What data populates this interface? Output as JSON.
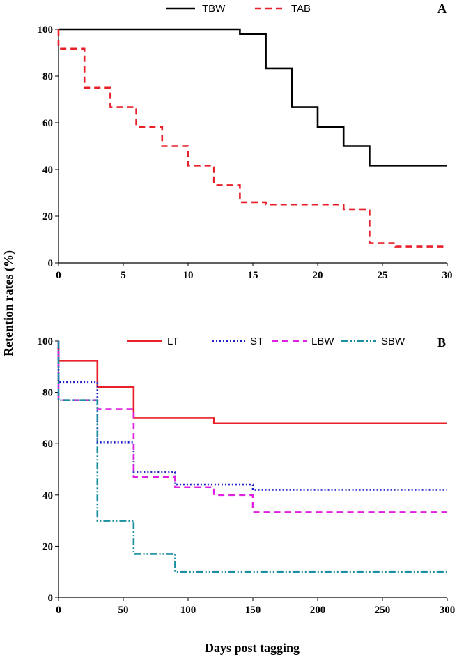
{
  "ylabel": "Retention rates (%)",
  "xlabel": "Days post tagging",
  "chart_data": [
    {
      "type": "line",
      "step": true,
      "panel": "A",
      "xlim": [
        0,
        30
      ],
      "ylim": [
        0,
        100
      ],
      "xticks": [
        0,
        5,
        10,
        15,
        20,
        25,
        30
      ],
      "yticks": [
        0,
        20,
        40,
        60,
        80,
        100
      ],
      "legend_placement": "top",
      "series": [
        {
          "name": "TBW",
          "color": "#000000",
          "style": "solid",
          "x": [
            0,
            14,
            16,
            18,
            20,
            22,
            24,
            30
          ],
          "y": [
            100,
            98,
            83.3,
            66.7,
            58.3,
            50,
            41.7,
            41.7
          ]
        },
        {
          "name": "TAB",
          "color": "#e8202a",
          "style": "dashed",
          "x": [
            0,
            0,
            2,
            4,
            6,
            8,
            10,
            12,
            14,
            16,
            22,
            24,
            26,
            30
          ],
          "y": [
            100,
            91.7,
            75,
            66.7,
            58.3,
            50,
            41.7,
            33.3,
            26,
            25,
            23,
            8.5,
            7,
            7
          ]
        }
      ]
    },
    {
      "type": "line",
      "step": true,
      "panel": "B",
      "xlim": [
        0,
        300
      ],
      "ylim": [
        0,
        100
      ],
      "xticks": [
        0,
        50,
        100,
        150,
        200,
        250,
        300
      ],
      "yticks": [
        0,
        20,
        40,
        60,
        80,
        100
      ],
      "legend_placement": "top",
      "series": [
        {
          "name": "LT",
          "color": "#e8202a",
          "style": "solid",
          "x": [
            0,
            0,
            30,
            58,
            120,
            300
          ],
          "y": [
            100,
            92.3,
            82,
            70,
            68,
            68
          ]
        },
        {
          "name": "ST",
          "color": "#1f1fc8",
          "style": "dotted",
          "x": [
            0,
            0,
            30,
            58,
            90,
            150,
            300
          ],
          "y": [
            100,
            84,
            60.5,
            49,
            44,
            42,
            42
          ]
        },
        {
          "name": "LBW",
          "color": "#e020e0",
          "style": "dashed",
          "x": [
            0,
            0,
            30,
            58,
            90,
            120,
            150,
            300
          ],
          "y": [
            100,
            77,
            73.5,
            47,
            43,
            40,
            33.3,
            33.3
          ]
        },
        {
          "name": "SBW",
          "color": "#1a8fa0",
          "style": "dashdot",
          "x": [
            0,
            0,
            30,
            58,
            90,
            300
          ],
          "y": [
            100,
            77,
            30,
            17,
            10,
            10
          ]
        }
      ]
    }
  ]
}
